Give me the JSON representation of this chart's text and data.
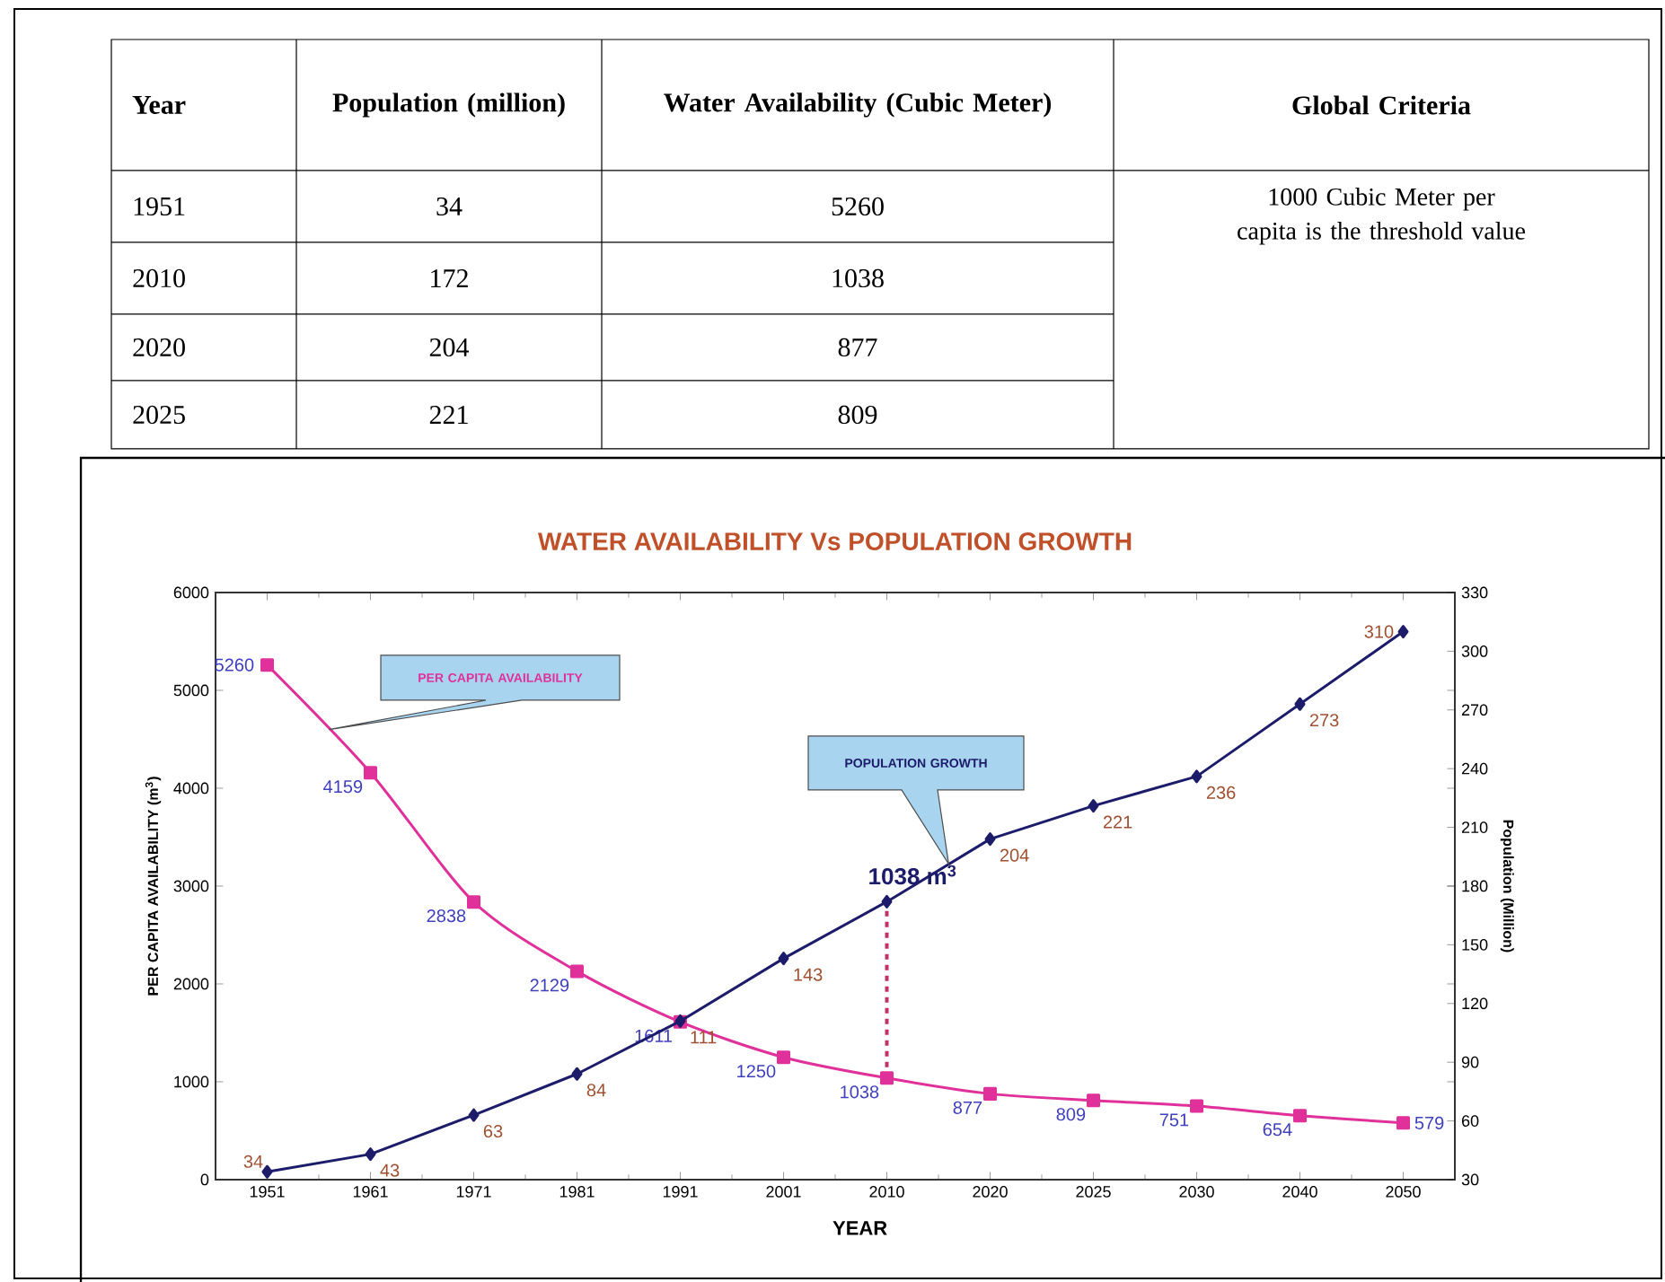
{
  "chart_data": [
    {
      "type": "other",
      "annotations": [
        "Year",
        "Population (million)",
        "Water Availability (Cubic Meter)",
        "Global Criteria",
        "1951",
        "34",
        "5260",
        "2010",
        "172",
        "1038",
        "2020",
        "204",
        "877",
        "2025",
        "221",
        "809",
        "1000 Cubic Meter  per capita is the threshold value"
      ]
    },
    {
      "type": "line",
      "title": "WATER AVAILABILITY Vs POPULATION GROWTH",
      "xlabel": "YEAR",
      "ylabel": "PER CAPITA AVAILABILITY (m$^{3}$)",
      "y2label": "Population (Million)",
      "categories": [
        "1951",
        "1961",
        "1971",
        "1981",
        "1991",
        "2001",
        "2010",
        "2020",
        "2025",
        "2030",
        "2040",
        "2050"
      ],
      "series": [
        {
          "name": "PER CAPITA AVAILABILITY",
          "color": "#e0309a",
          "marker": "square",
          "values": [
            5260,
            4159,
            2838,
            2129,
            1611,
            1250,
            1038,
            877,
            809,
            751,
            654,
            579
          ],
          "value_labels": [
            "5260",
            "4159",
            "2838",
            "2129",
            "1611",
            "1250",
            "1038",
            "877",
            "809",
            "751",
            "654",
            "579"
          ]
        },
        {
          "name": "POPULATION GROWTH",
          "color": "#1c1c6a",
          "marker": "diamond",
          "axis": "y2",
          "values": [
            34,
            43,
            63,
            84,
            111,
            143,
            172,
            204,
            221,
            236,
            273,
            310
          ],
          "value_labels": [
            "34",
            "43",
            "63",
            "84",
            "111",
            "143",
            null,
            "204",
            "221",
            "236",
            "273",
            "310"
          ]
        }
      ],
      "ylim": [
        0,
        6000
      ],
      "yticks": [
        0,
        1000,
        2000,
        3000,
        4000,
        5000,
        6000
      ],
      "y2lim": [
        30,
        330
      ],
      "y2ticks": [
        30,
        60,
        90,
        120,
        150,
        180,
        210,
        240,
        270,
        300,
        330
      ],
      "ref_lines": [
        {
          "axis": "x",
          "value": "2010",
          "label": "1038 m$^{3}$",
          "color": "#c0306a",
          "line_style": "dashed"
        }
      ],
      "legend": false
    }
  ]
}
